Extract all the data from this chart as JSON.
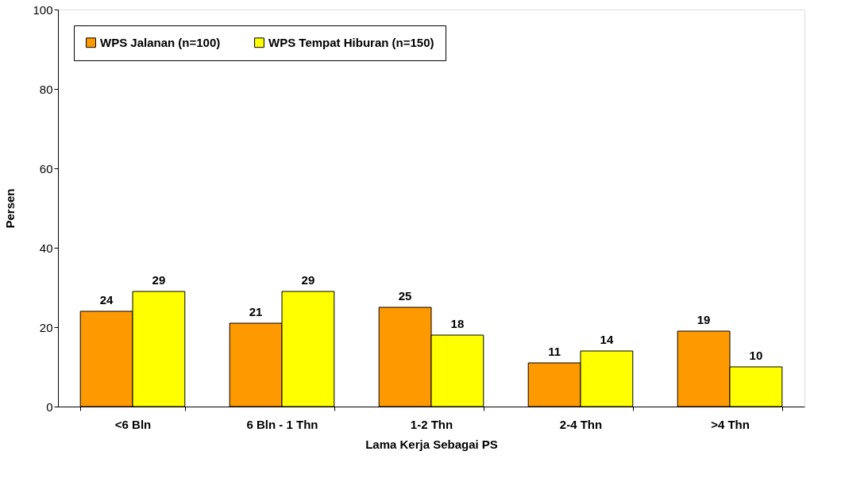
{
  "chart_data": {
    "type": "bar",
    "xlabel": "Lama Kerja Sebagai PS",
    "ylabel": "Persen",
    "categories": [
      "<6 Bln",
      "6 Bln - 1 Thn",
      "1-2 Thn",
      "2-4 Thn",
      ">4 Thn"
    ],
    "series": [
      {
        "name": "WPS Jalanan (n=100)",
        "color": "#ff9900",
        "values": [
          24,
          21,
          25,
          11,
          19
        ]
      },
      {
        "name": "WPS Tempat Hiburan (n=150)",
        "color": "#ffff00",
        "values": [
          29,
          29,
          18,
          14,
          10
        ]
      }
    ],
    "ylim": [
      0,
      100
    ],
    "yticks": [
      0,
      20,
      40,
      60,
      80,
      100
    ],
    "grid": false,
    "legend": "top left",
    "data_labels": true
  }
}
